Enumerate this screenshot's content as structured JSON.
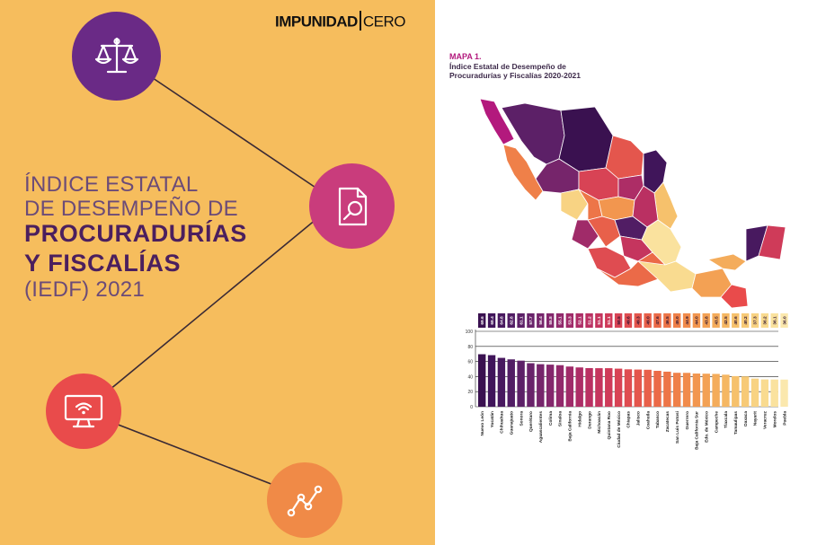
{
  "logo": {
    "bold": "IMPUNIDAD",
    "light": "CERO"
  },
  "cover": {
    "line1": "ÍNDICE ESTATAL",
    "line2": "DE DESEMPEÑO DE",
    "line3": "PROCURADURÍAS",
    "line4": "Y FISCALÍAS",
    "line5": "(IEDF) 2021"
  },
  "icons": [
    {
      "name": "scales-icon",
      "color": "#6a2a86"
    },
    {
      "name": "document-search-icon",
      "color": "#c93c7c"
    },
    {
      "name": "monitor-wifi-icon",
      "color": "#e94b4b"
    },
    {
      "name": "line-graph-icon",
      "color": "#f08a47"
    }
  ],
  "map": {
    "title": "MAPA 1.",
    "subtitle_line1": "Índice Estatal de Desempeño de",
    "subtitle_line2": "Procuradurías y Fiscalías 2020-2021"
  },
  "chart_data": {
    "type": "bar",
    "categories": [
      "Nuevo León",
      "Yucatán",
      "Chihuahua",
      "Guanajuato",
      "Sonora",
      "Querétaro",
      "Aguascalientes",
      "Colima",
      "Sinaloa",
      "Baja California",
      "Hidalgo",
      "Durango",
      "Michoacán",
      "Quintana Roo",
      "Ciudad de México",
      "Chiapas",
      "Jalisco",
      "Coahuila",
      "Tabasco",
      "Zacatecas",
      "San Luis Potosí",
      "Guerrero",
      "Baja California Sur",
      "Edo. de México",
      "Campeche",
      "Tlaxcala",
      "Tamaulipas",
      "Oaxaca",
      "Nayarit",
      "Veracruz",
      "Morelos",
      "Puebla"
    ],
    "values": [
      69.6,
      68.4,
      64.8,
      62.8,
      61.1,
      57.7,
      56.4,
      55.8,
      55.1,
      53.3,
      52.1,
      51.2,
      51.1,
      51.1,
      50.5,
      49.6,
      49.3,
      49.0,
      47.6,
      46.5,
      45.0,
      44.9,
      44.0,
      43.8,
      43.5,
      42.5,
      40.6,
      40.2,
      37.3,
      36.2,
      36.1,
      36.0
    ],
    "labels": [
      "69.6",
      "68.4",
      "64.8",
      "62.8",
      "61.1",
      "57.7",
      "56.4",
      "55.8",
      "55.1",
      "53.3",
      "52.1",
      "51.2",
      "51.1",
      "51.1",
      "50.5",
      "49.6",
      "49.3",
      "49.0",
      "47.6",
      "46.5",
      "45.0",
      "44.9",
      "44.0",
      "43.8",
      "43.5",
      "42.5",
      "40.6",
      "40.2",
      "37.3",
      "36.2",
      "36.1",
      "36.0"
    ],
    "colors": [
      "#3a1150",
      "#40155a",
      "#48195f",
      "#511d64",
      "#5c2067",
      "#69236a",
      "#76256b",
      "#84276c",
      "#92296b",
      "#a02b69",
      "#ad2d66",
      "#ba3062",
      "#c5355e",
      "#cf3b59",
      "#d84355",
      "#df4c51",
      "#e4564d",
      "#e8604a",
      "#eb6a48",
      "#ed7548",
      "#ef8049",
      "#f18b4b",
      "#f2964f",
      "#f3a154",
      "#f4ac5b",
      "#f5b763",
      "#f6c16c",
      "#f7ca77",
      "#f8d383",
      "#f9db90",
      "#fae29e",
      "#fbe8ad"
    ],
    "yticks": [
      "0",
      "20",
      "40",
      "60",
      "80",
      "100"
    ],
    "ylim": [
      0,
      100
    ],
    "xlabel": "",
    "ylabel": ""
  }
}
